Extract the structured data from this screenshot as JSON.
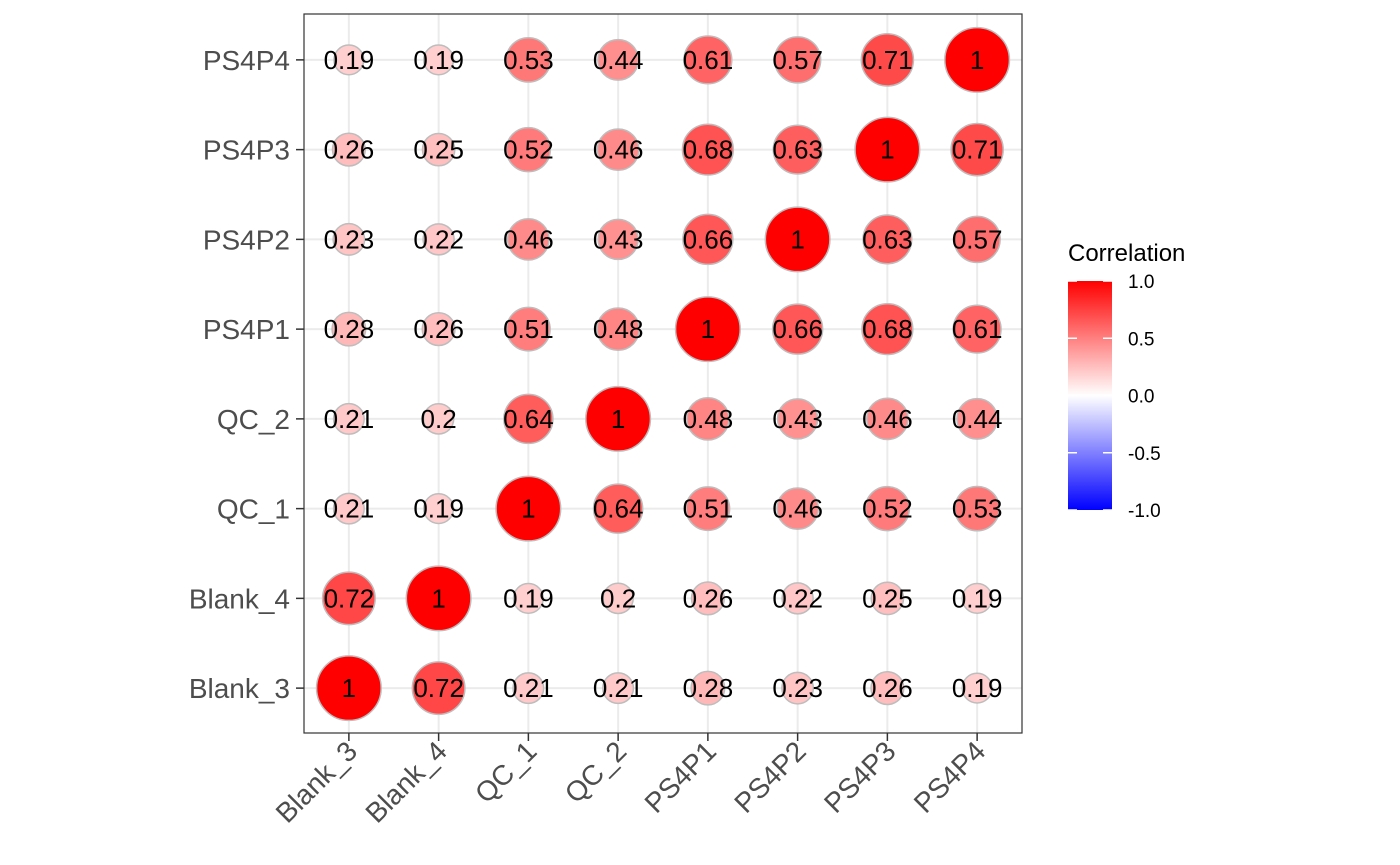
{
  "chart_data": {
    "type": "scatter",
    "subtype": "correlation-matrix-bubble",
    "title": "",
    "xlabel": "",
    "ylabel": "",
    "x_categories": [
      "Blank_3",
      "Blank_4",
      "QC_1",
      "QC_2",
      "PS4P1",
      "PS4P2",
      "PS4P3",
      "PS4P4"
    ],
    "y_categories": [
      "Blank_3",
      "Blank_4",
      "QC_1",
      "QC_2",
      "PS4P1",
      "PS4P2",
      "PS4P3",
      "PS4P4"
    ],
    "matrix": [
      [
        1,
        0.72,
        0.21,
        0.21,
        0.28,
        0.23,
        0.26,
        0.19
      ],
      [
        0.72,
        1,
        0.19,
        0.2,
        0.26,
        0.22,
        0.25,
        0.19
      ],
      [
        0.21,
        0.19,
        1,
        0.64,
        0.51,
        0.46,
        0.52,
        0.53
      ],
      [
        0.21,
        0.2,
        0.64,
        1,
        0.48,
        0.43,
        0.46,
        0.44
      ],
      [
        0.28,
        0.26,
        0.51,
        0.48,
        1,
        0.66,
        0.68,
        0.61
      ],
      [
        0.23,
        0.22,
        0.46,
        0.43,
        0.66,
        1,
        0.63,
        0.57
      ],
      [
        0.26,
        0.25,
        0.52,
        0.46,
        0.68,
        0.63,
        1,
        0.71
      ],
      [
        0.19,
        0.19,
        0.53,
        0.44,
        0.61,
        0.57,
        0.71,
        1
      ]
    ],
    "legend": {
      "title": "Correlation",
      "placement": "right",
      "range": [
        -1,
        1
      ],
      "ticks": [
        "1.0",
        "0.5",
        "0.0",
        "-0.5",
        "-1.0"
      ],
      "tick_values": [
        1,
        0.5,
        0,
        -0.5,
        -1
      ],
      "colors": {
        "low": "#0000ff",
        "mid": "#ffffff",
        "high": "#ff0000"
      }
    },
    "grid": true,
    "colors": {
      "grid": "#ebebeb",
      "panel_border": "#333333",
      "circle_border": "#bdbdbd"
    }
  }
}
